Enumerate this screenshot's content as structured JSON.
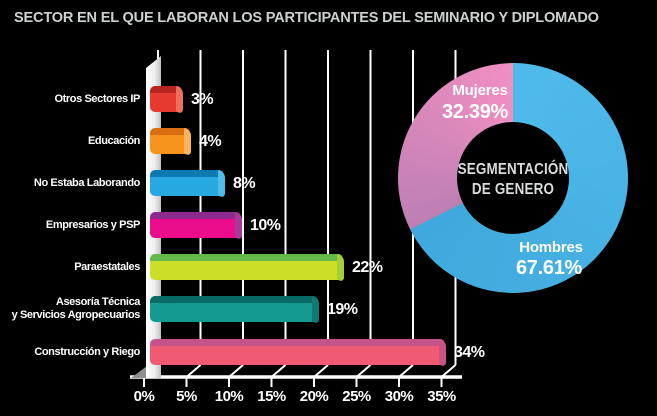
{
  "title": "SECTOR EN EL QUE LABORAN LOS PARTICIPANTES DEL SEMINARIO Y DIPLOMADO",
  "colors": {
    "background": "#000000",
    "title_text": "#ced1d2",
    "axis_white": "#ffffff",
    "label_text": "#ffffff"
  },
  "chart_data": [
    {
      "type": "bar",
      "orientation": "horizontal",
      "title": "SECTOR EN EL QUE LABORAN LOS PARTICIPANTES DEL SEMINARIO Y DIPLOMADO",
      "categories": [
        "Otros Sectores IP",
        "Educación",
        "No Estaba Laborando",
        "Empresarios y PSP",
        "Paraestatales",
        "Asesoría Técnica y Servicios Agropecuarios",
        "Construcción y Riego"
      ],
      "category_display_lines": [
        [
          "Otros Sectores IP"
        ],
        [
          "Educación"
        ],
        [
          "No Estaba Laborando"
        ],
        [
          "Empresarios y PSP"
        ],
        [
          "Paraestatales"
        ],
        [
          "Asesoría Técnica",
          "y Servicios Agropecuarios"
        ],
        [
          "Construcción y Riego"
        ]
      ],
      "values": [
        3,
        4,
        8,
        10,
        22,
        19,
        34
      ],
      "value_labels": [
        "3%",
        "4%",
        "8%",
        "10%",
        "22%",
        "19%",
        "34%"
      ],
      "x_ticks": [
        "0%",
        "5%",
        "10%",
        "15%",
        "20%",
        "25%",
        "30%",
        "35%"
      ],
      "xlim": [
        0,
        35
      ],
      "grid": true,
      "bar_styles": [
        {
          "face": "#e6392f",
          "bevel": "#b72420",
          "cap": "#ef6f5f"
        },
        {
          "face": "#f7941e",
          "bevel": "#da6f12",
          "cap": "#fab45e"
        },
        {
          "face": "#28a8e0",
          "bevel": "#0e7ab2",
          "cap": "#4fbce9"
        },
        {
          "face": "#eb0d8c",
          "bevel": "#8c2a90",
          "cap": "#aa3897"
        },
        {
          "face": "#cdde29",
          "bevel": "#62b94a",
          "cap": "#a5cf36"
        },
        {
          "face": "#149a90",
          "bevel": "#0a6b66",
          "cap": "#0d7a73"
        },
        {
          "face": "#f05a73",
          "bevel": "#c4538c",
          "cap": "#ca5386"
        }
      ]
    },
    {
      "type": "pie",
      "subtype": "donut",
      "center_label_lines": [
        "SEGMENTACIÓN",
        "DE GENERO"
      ],
      "legend_position": "on-slices",
      "slices": [
        {
          "label": "Hombres",
          "value": 67.61,
          "display": "67.61%",
          "color_start": "#4fbbeb",
          "color_end": "#3fa8dc"
        },
        {
          "label": "Mujeres",
          "value": 32.39,
          "display": "32.39%",
          "color_start": "#bd7fb4",
          "color_end": "#f18fc1"
        }
      ]
    }
  ]
}
